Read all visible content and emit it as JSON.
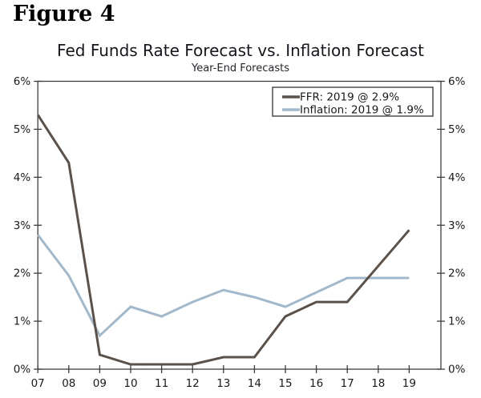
{
  "figure_label": "Figure 4",
  "chart": {
    "title": "Fed Funds Rate Forecast vs. Inflation Forecast",
    "subtitle": "Year-End Forecasts"
  },
  "colors": {
    "ffr_line": "#5b5148",
    "inflation_line": "#a2b8cb",
    "axis": "#3d3d3d",
    "tick_text": "#1a1a1a",
    "legend_border": "#4d4d4d",
    "background": "#ffffff"
  },
  "chart_data": {
    "type": "line",
    "title": "Fed Funds Rate Forecast vs. Inflation Forecast",
    "subtitle": "Year-End Forecasts",
    "categories": [
      "07",
      "08",
      "09",
      "10",
      "11",
      "12",
      "13",
      "14",
      "15",
      "16",
      "17",
      "18",
      "19"
    ],
    "series": [
      {
        "name": "FFR: 2019 @ 2.9%",
        "color": "#5b5148",
        "values": [
          5.3,
          4.3,
          0.3,
          0.1,
          0.1,
          0.1,
          0.25,
          0.25,
          1.1,
          1.4,
          1.4,
          2.15,
          2.9
        ]
      },
      {
        "name": "Inflation: 2019 @ 1.9%",
        "color": "#a2b8cb",
        "values": [
          2.8,
          1.95,
          0.7,
          1.3,
          1.1,
          1.4,
          1.65,
          1.5,
          1.3,
          1.6,
          1.9,
          1.9,
          1.9
        ]
      }
    ],
    "xlabel": "",
    "ylabel": "",
    "ylim": [
      0,
      6
    ],
    "y_ticks": [
      "0%",
      "1%",
      "2%",
      "3%",
      "4%",
      "5%",
      "6%"
    ],
    "grid": false,
    "legend_position": "top-right",
    "y_axis_sides": [
      "left",
      "right"
    ]
  }
}
